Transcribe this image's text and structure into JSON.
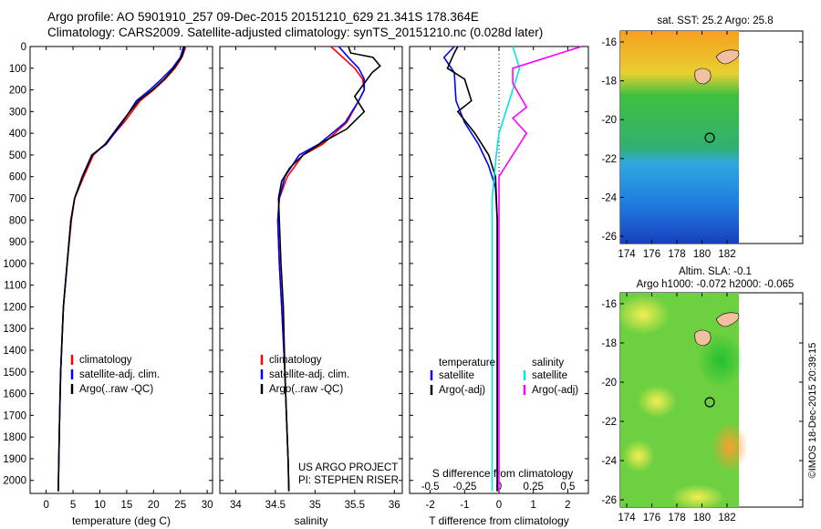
{
  "header": {
    "line1": "Argo profile: AO 5901910_257 09-Dec-2015 20151210_629 21.341S 178.364E",
    "line2": "Climatology: CARS2009. Satellite-adjusted climatology: synTS_20151210.nc (0.028d later)"
  },
  "colors": {
    "climatology": "#ff0000",
    "satellite_clim": "#0000ff",
    "argo": "#000000",
    "temp_satellite": "#0000ff",
    "sal_satellite": "#00e5e5",
    "sal_argo": "#ff00ff"
  },
  "chart_data": [
    {
      "id": "temperature",
      "type": "line",
      "xlabel": "temperature (deg C)",
      "ylabel": "",
      "xlim": [
        -3,
        31
      ],
      "ylim": [
        2060,
        0
      ],
      "x_ticks": [
        0,
        5,
        10,
        15,
        20,
        25,
        30
      ],
      "y_ticks": [
        0,
        100,
        200,
        300,
        400,
        500,
        600,
        700,
        800,
        900,
        1000,
        1100,
        1200,
        1300,
        1400,
        1500,
        1600,
        1700,
        1800,
        1900,
        2000
      ],
      "legend": {
        "position": "lower-left",
        "entries": [
          "climatology",
          "satellite-adj. clim.",
          "Argo(..raw -QC)"
        ]
      },
      "series": [
        {
          "name": "climatology",
          "color": "#ff0000",
          "x": [
            26.0,
            25.3,
            24.0,
            22.2,
            20.0,
            17.5,
            14.5,
            11.0,
            8.8,
            7.0,
            5.3,
            4.7,
            3.9,
            3.2,
            2.7,
            2.5,
            2.35,
            2.25
          ],
          "y": [
            0,
            50,
            100,
            150,
            200,
            250,
            350,
            450,
            500,
            600,
            700,
            800,
            1000,
            1200,
            1500,
            1700,
            1900,
            2050
          ]
        },
        {
          "name": "satellite-adj. clim.",
          "color": "#0000ff",
          "x": [
            25.6,
            25.0,
            23.5,
            21.5,
            19.3,
            16.8,
            14.2,
            11.2,
            8.5,
            6.7,
            5.3,
            4.6,
            3.9,
            3.2,
            2.7,
            2.5,
            2.35,
            2.25
          ],
          "y": [
            0,
            50,
            100,
            150,
            200,
            250,
            350,
            450,
            500,
            600,
            700,
            800,
            1000,
            1200,
            1500,
            1700,
            1900,
            2050
          ]
        },
        {
          "name": "Argo(..raw -QC)",
          "color": "#000000",
          "x": [
            25.8,
            25.4,
            23.8,
            22.0,
            19.8,
            17.2,
            14.0,
            11.0,
            8.6,
            6.8,
            5.3,
            4.6,
            3.9,
            3.2,
            2.7,
            2.5,
            2.35,
            2.25
          ],
          "y": [
            0,
            40,
            100,
            150,
            200,
            250,
            350,
            450,
            500,
            600,
            700,
            800,
            1000,
            1200,
            1500,
            1700,
            1900,
            2050
          ]
        }
      ]
    },
    {
      "id": "salinity",
      "type": "line",
      "xlabel": "salinity",
      "ylabel": "",
      "xlim": [
        33.8,
        36.1
      ],
      "ylim": [
        2060,
        0
      ],
      "x_ticks": [
        34,
        34.5,
        35,
        35.5,
        36
      ],
      "x_tick_labels": [
        "34",
        "34.5",
        "35",
        "35.5",
        "36"
      ],
      "legend": {
        "position": "lower-left",
        "entries": [
          "climatology",
          "satellite-adj. clim.",
          "Argo(..raw -QC)"
        ]
      },
      "annotations": [
        "US ARGO PROJECT",
        "PI: STEPHEN RISER"
      ],
      "series": [
        {
          "name": "climatology",
          "color": "#ff0000",
          "x": [
            35.2,
            35.35,
            35.5,
            35.6,
            35.62,
            35.55,
            35.4,
            35.1,
            34.85,
            34.65,
            34.55,
            34.53,
            34.55,
            34.58,
            34.62,
            34.64,
            34.66,
            34.67
          ],
          "y": [
            0,
            50,
            100,
            150,
            200,
            250,
            350,
            450,
            500,
            600,
            700,
            800,
            1000,
            1200,
            1500,
            1700,
            1900,
            2050
          ]
        },
        {
          "name": "satellite-adj. clim.",
          "color": "#0000ff",
          "x": [
            35.3,
            35.42,
            35.55,
            35.62,
            35.62,
            35.55,
            35.38,
            35.05,
            34.8,
            34.62,
            34.55,
            34.53,
            34.55,
            34.58,
            34.62,
            34.64,
            34.66,
            34.67
          ],
          "y": [
            0,
            50,
            100,
            150,
            200,
            250,
            350,
            450,
            500,
            600,
            700,
            800,
            1000,
            1200,
            1500,
            1700,
            1900,
            2050
          ]
        },
        {
          "name": "Argo(..raw -QC)",
          "color": "#000000",
          "x": [
            35.42,
            35.45,
            35.73,
            35.82,
            35.72,
            35.62,
            35.5,
            35.62,
            35.4,
            35.1,
            34.85,
            34.68,
            34.58,
            34.54,
            34.55,
            34.57,
            34.6,
            34.62,
            34.64,
            34.66,
            34.67
          ],
          "y": [
            0,
            30,
            50,
            90,
            120,
            170,
            230,
            300,
            380,
            440,
            500,
            560,
            620,
            700,
            800,
            1000,
            1200,
            1500,
            1700,
            1900,
            2050
          ]
        }
      ]
    },
    {
      "id": "difference",
      "type": "line",
      "xlabel": "T difference from climatology",
      "x_top_label": "S difference from climatology",
      "xlim": [
        -2.6,
        2.6
      ],
      "ylim": [
        2060,
        0
      ],
      "x_ticks": [
        -2,
        -1,
        0,
        1,
        2
      ],
      "x_tick_labels": [
        "-2",
        "-1",
        "0",
        "1",
        "2"
      ],
      "s_ticks": [
        -0.5,
        -0.25,
        0,
        0.25,
        0.5
      ],
      "s_tick_labels": [
        "-0.5",
        "-0.25",
        "0",
        "0.25",
        "0.5"
      ],
      "legend": {
        "position": "lower",
        "temperature_title": "temperature",
        "salinity_title": "salinity",
        "entries": [
          "satellite",
          "Argo(-adj)",
          "satellite",
          "Argo(-adj)"
        ]
      },
      "series": [
        {
          "name": "satellite",
          "group": "temperature",
          "color": "#0000ff",
          "x": [
            -1.3,
            -1.6,
            -1.3,
            -1.25,
            -1.0,
            -0.6,
            -0.3,
            -0.1,
            -0.05,
            -0.05,
            -0.05,
            -0.05
          ],
          "y": [
            0,
            50,
            120,
            250,
            350,
            450,
            550,
            650,
            800,
            1200,
            1600,
            2050
          ]
        },
        {
          "name": "Argo(-adj)",
          "group": "temperature",
          "color": "#000000",
          "x": [
            -1.2,
            -1.3,
            -1.5,
            -1.0,
            -0.8,
            -1.2,
            -0.7,
            -0.3,
            -0.1,
            -0.05,
            -0.05,
            -0.05
          ],
          "y": [
            0,
            30,
            100,
            150,
            250,
            300,
            400,
            500,
            600,
            800,
            1500,
            2050
          ]
        },
        {
          "name": "satellite",
          "group": "salinity",
          "color": "#00e5e5",
          "x": [
            0.1,
            0.15,
            0.1,
            0.05,
            0.0,
            -0.02,
            -0.05,
            -0.05,
            -0.05
          ],
          "y": [
            0,
            100,
            200,
            300,
            400,
            500,
            700,
            1200,
            2050
          ]
        },
        {
          "name": "Argo(-adj)",
          "group": "salinity",
          "color": "#ff00ff",
          "x": [
            0.6,
            0.5,
            0.3,
            0.1,
            0.1,
            0.2,
            0.1,
            0.2,
            0.0,
            0.0,
            0.0
          ],
          "y": [
            0,
            20,
            60,
            100,
            170,
            280,
            330,
            400,
            600,
            1000,
            2050
          ]
        }
      ]
    }
  ],
  "maps": {
    "sst": {
      "title": "sat. SST: 25.2  Argo: 25.8",
      "x_ticks": [
        "174",
        "176",
        "178",
        "180",
        "182"
      ],
      "y_ticks": [
        "-16",
        "-18",
        "-20",
        "-22",
        "-24",
        "-26"
      ]
    },
    "sla": {
      "title1": "Altim. SLA: -0.1",
      "title2": "Argo h1000: -0.072 h2000: -0.065",
      "x_ticks": [
        "174",
        "176",
        "178",
        "180",
        "182"
      ],
      "y_ticks": [
        "-16",
        "-18",
        "-20",
        "-22",
        "-24",
        "-26"
      ]
    }
  },
  "credit": "©IMOS 18-Dec-2015 20:39:15"
}
